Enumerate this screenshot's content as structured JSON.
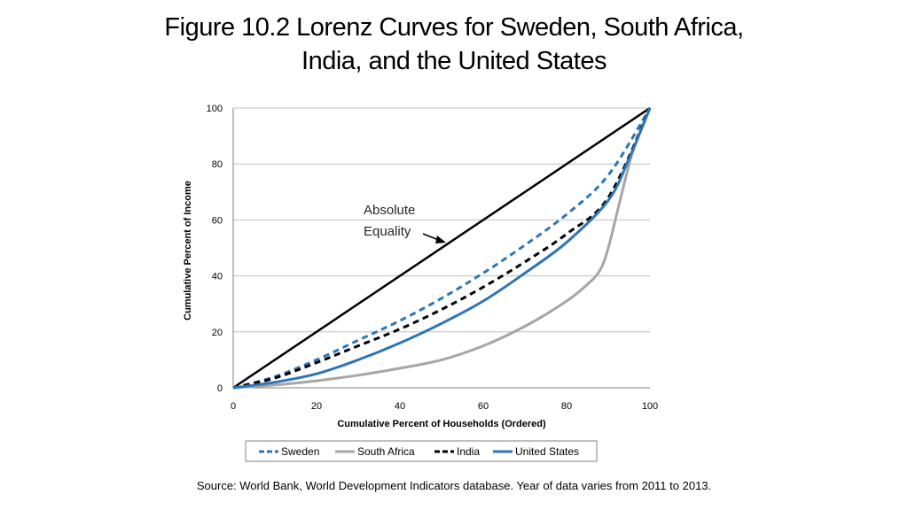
{
  "slide": {
    "title_line1": "Figure 10.2 Lorenz Curves for Sweden, South Africa,",
    "title_line2": "India, and the United States",
    "source": "Source: World Bank, World Development Indicators database. Year of data varies from 2011 to 2013."
  },
  "chart_data": {
    "type": "line",
    "title": "",
    "xlabel": "Cumulative Percent of Households (Ordered)",
    "ylabel": "Cumulative Percent of Income",
    "xlim": [
      0,
      100
    ],
    "ylim": [
      0,
      100
    ],
    "xticks": [
      0,
      20,
      40,
      60,
      80,
      100
    ],
    "yticks": [
      0,
      20,
      40,
      60,
      80,
      100
    ],
    "grid": "horizontal",
    "legend_position": "bottom",
    "annotation": {
      "line1": "Absolute",
      "line2": "Equality",
      "points_to": [
        50,
        50
      ]
    },
    "equality_line": {
      "x": [
        0,
        100
      ],
      "y": [
        0,
        100
      ],
      "color": "#000000"
    },
    "series": [
      {
        "name": "Sweden",
        "color": "#2e75b6",
        "dash": "dashed",
        "x": [
          0,
          10,
          20,
          30,
          40,
          50,
          60,
          70,
          80,
          90,
          100
        ],
        "y": [
          0,
          4,
          10,
          17,
          24,
          32,
          41,
          51,
          62,
          76,
          100
        ]
      },
      {
        "name": "South Africa",
        "color": "#a6a6a6",
        "dash": "solid",
        "x": [
          0,
          10,
          20,
          30,
          40,
          50,
          60,
          70,
          80,
          85,
          88,
          90,
          93,
          96,
          100
        ],
        "y": [
          0,
          1,
          2.5,
          4.5,
          7,
          10,
          15,
          22,
          31,
          37,
          42,
          50,
          68,
          85,
          100
        ]
      },
      {
        "name": "India",
        "color": "#000000",
        "dash": "dashed",
        "x": [
          0,
          10,
          20,
          30,
          40,
          50,
          60,
          70,
          80,
          90,
          100
        ],
        "y": [
          0,
          3.5,
          9,
          15,
          21,
          28,
          36,
          45,
          55,
          68,
          100
        ]
      },
      {
        "name": "United States",
        "color": "#2e75b6",
        "dash": "solid",
        "x": [
          0,
          10,
          20,
          30,
          40,
          50,
          60,
          70,
          80,
          90,
          95,
          100
        ],
        "y": [
          0,
          2,
          5,
          10,
          16,
          23,
          31,
          41,
          52,
          67,
          82,
          100
        ]
      }
    ]
  }
}
